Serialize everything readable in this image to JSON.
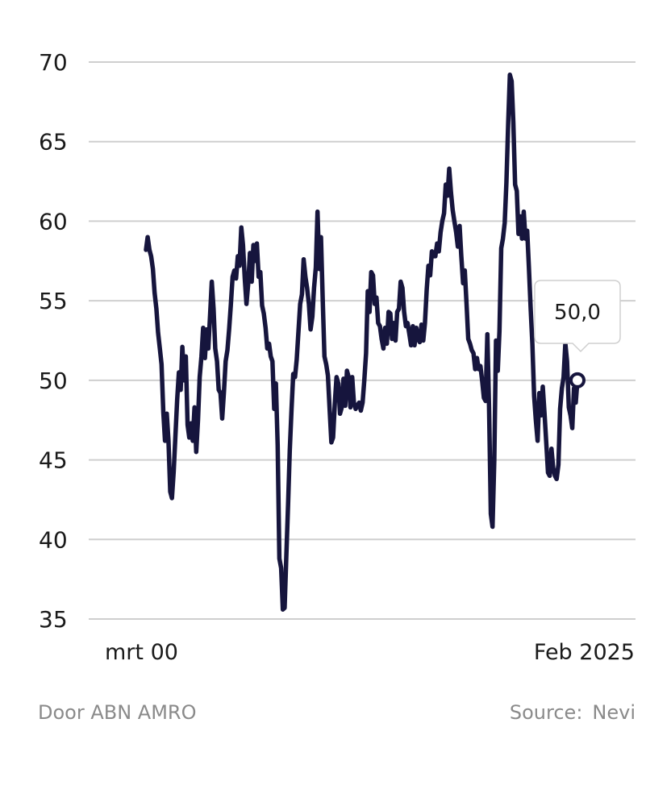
{
  "footer": {
    "credit": "Door ABN AMRO",
    "source_label": "Source:",
    "source_value": "Nevi"
  },
  "chart_data": {
    "type": "line",
    "title": "",
    "xlabel": "",
    "ylabel": "",
    "ylim": [
      35,
      70
    ],
    "yticks": [
      35,
      40,
      45,
      50,
      55,
      60,
      65,
      70
    ],
    "x_start_label": "mrt 00",
    "x_end_label": "Feb 2025",
    "grid": true,
    "line_color": "#16153d",
    "grid_color": "#cfcfcf",
    "tooltip": {
      "label": "50,0",
      "value": 50.0
    },
    "series": [
      {
        "values": [
          58.2,
          59.0,
          58.2,
          57.8,
          57.0,
          55.5,
          54.5,
          53.0,
          52.0,
          51.0,
          48.0,
          46.2,
          47.9,
          46.2,
          43.0,
          42.6,
          44.3,
          46.5,
          48.8,
          50.5,
          49.4,
          52.1,
          50.0,
          51.5,
          47.2,
          46.4,
          47.3,
          46.2,
          48.3,
          45.5,
          47.5,
          50.2,
          51.5,
          53.3,
          51.4,
          53.2,
          52.0,
          54.1,
          56.2,
          54.5,
          52.0,
          51.2,
          49.4,
          49.2,
          47.6,
          49.3,
          51.2,
          51.9,
          53.2,
          54.8,
          56.5,
          56.9,
          56.4,
          57.8,
          57.2,
          59.6,
          58.5,
          56.4,
          54.8,
          56.1,
          58.0,
          56.2,
          58.5,
          57.5,
          58.6,
          56.5,
          56.8,
          54.7,
          54.2,
          53.3,
          52.0,
          52.3,
          51.5,
          51.2,
          48.2,
          49.8,
          45.9,
          38.8,
          38.2,
          35.6,
          35.7,
          38.9,
          42.2,
          45.6,
          48.2,
          50.4,
          50.2,
          51.3,
          53.1,
          54.8,
          55.4,
          57.6,
          56.5,
          55.8,
          54.8,
          53.2,
          54.0,
          55.8,
          57.1,
          60.6,
          57.0,
          59.0,
          55.0,
          51.5,
          51.0,
          50.3,
          48.1,
          46.1,
          46.4,
          48.6,
          50.2,
          49.8,
          47.9,
          48.3,
          50.1,
          48.4,
          50.6,
          50.2,
          48.3,
          50.2,
          48.6,
          48.2,
          48.4,
          48.6,
          48.1,
          48.6,
          50.0,
          51.7,
          55.6,
          54.3,
          56.8,
          56.6,
          54.8,
          55.2,
          53.6,
          53.4,
          52.6,
          52.0,
          53.3,
          52.3,
          54.3,
          54.2,
          52.6,
          53.6,
          52.5,
          54.3,
          54.5,
          56.2,
          55.8,
          54.3,
          53.4,
          53.6,
          52.9,
          52.2,
          53.4,
          52.2,
          53.3,
          52.6,
          52.4,
          53.5,
          52.5,
          53.6,
          55.7,
          57.2,
          56.6,
          58.1,
          57.8,
          57.8,
          58.6,
          58.1,
          59.3,
          60.0,
          60.5,
          62.3,
          61.6,
          63.3,
          61.8,
          60.7,
          60.0,
          59.3,
          58.4,
          59.7,
          57.8,
          56.1,
          56.9,
          54.8,
          52.6,
          52.3,
          51.9,
          51.7,
          50.7,
          51.4,
          50.7,
          50.9,
          50.0,
          48.9,
          48.7,
          52.9,
          48.3,
          41.6,
          40.8,
          45.0,
          52.5,
          50.6,
          53.1,
          58.3,
          58.9,
          59.9,
          62.4,
          66.1,
          69.2,
          68.8,
          66.2,
          62.3,
          61.9,
          59.2,
          60.3,
          58.9,
          60.6,
          58.9,
          59.4,
          57.1,
          54.5,
          52.3,
          49.0,
          47.5,
          46.2,
          49.2,
          47.8,
          49.6,
          47.9,
          46.1,
          44.2,
          44.0,
          45.7,
          44.5,
          44.0,
          43.8,
          44.7,
          48.2,
          49.5,
          50.2,
          52.3,
          51.2,
          48.3,
          47.8,
          47.0,
          49.5,
          48.6,
          50.0
        ]
      }
    ]
  }
}
